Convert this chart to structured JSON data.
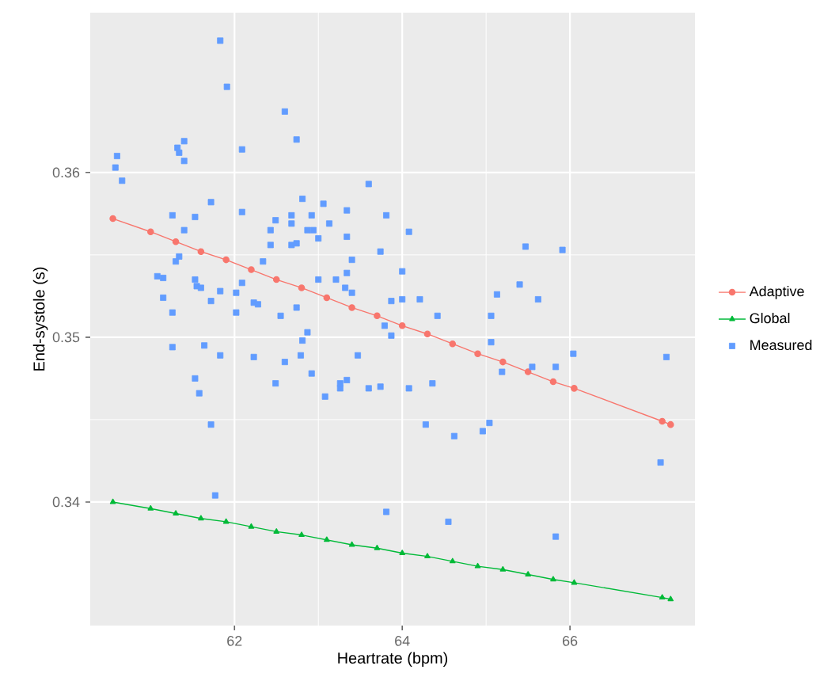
{
  "chart_data": {
    "type": "scatter",
    "xlabel": "Heartrate (bpm)",
    "ylabel": "End-systole (s)",
    "xlim": [
      60.28,
      67.49
    ],
    "ylim": [
      0.3325,
      0.3697
    ],
    "xticks": [
      62,
      64,
      66
    ],
    "yticks": [
      0.34,
      0.35,
      0.36
    ],
    "grid": true,
    "legend": "right",
    "series": [
      {
        "name": "Adaptive",
        "type": "line",
        "marker": "circle",
        "color": "#f8766d",
        "x": [
          60.55,
          61.0,
          61.3,
          61.6,
          61.9,
          62.2,
          62.5,
          62.8,
          63.1,
          63.4,
          63.7,
          64.0,
          64.3,
          64.6,
          64.9,
          65.2,
          65.5,
          65.8,
          66.05,
          67.1,
          67.2
        ],
        "values": [
          0.3572,
          0.3564,
          0.3558,
          0.3552,
          0.3547,
          0.3541,
          0.3535,
          0.353,
          0.3524,
          0.3518,
          0.3513,
          0.3507,
          0.3502,
          0.3496,
          0.349,
          0.3485,
          0.3479,
          0.3473,
          0.3469,
          0.3449,
          0.3447
        ]
      },
      {
        "name": "Global",
        "type": "line",
        "marker": "triangle",
        "color": "#00ba38",
        "x": [
          60.55,
          61.0,
          61.3,
          61.6,
          61.9,
          62.2,
          62.5,
          62.8,
          63.1,
          63.4,
          63.7,
          64.0,
          64.3,
          64.6,
          64.9,
          65.2,
          65.5,
          65.8,
          66.05,
          67.1,
          67.2
        ],
        "values": [
          0.34,
          0.3396,
          0.3393,
          0.339,
          0.3388,
          0.3385,
          0.3382,
          0.338,
          0.3377,
          0.3374,
          0.3372,
          0.3369,
          0.3367,
          0.3364,
          0.3361,
          0.3359,
          0.3356,
          0.3353,
          0.3351,
          0.3342,
          0.3341
        ]
      },
      {
        "name": "Measured",
        "marker": "square",
        "color": "#619cff",
        "x": [
          61.83,
          61.91,
          60.6,
          60.58,
          60.66,
          61.4,
          61.32,
          61.34,
          61.4,
          62.09,
          61.72,
          61.26,
          61.53,
          61.4,
          62.09,
          62.49,
          62.43,
          61.34,
          61.3,
          62.43,
          62.34,
          61.08,
          61.15,
          61.53,
          61.55,
          61.6,
          61.15,
          61.83,
          62.02,
          61.72,
          62.09,
          62.23,
          62.28,
          61.26,
          62.02,
          62.6,
          62.74,
          63.6,
          62.81,
          63.06,
          62.68,
          62.92,
          63.34,
          63.81,
          62.68,
          63.13,
          62.87,
          62.94,
          64.08,
          65.47,
          63.0,
          63.34,
          62.68,
          62.74,
          63.74,
          63.4,
          64.0,
          63.34,
          63.0,
          63.21,
          63.32,
          63.4,
          65.4,
          65.13,
          65.62,
          63.87,
          64.0,
          64.21,
          62.74,
          62.55,
          64.42,
          65.06,
          65.91,
          62.87,
          62.81,
          62.6,
          62.79,
          62.92,
          62.49,
          63.08,
          63.26,
          63.26,
          63.34,
          63.47,
          63.6,
          63.74,
          63.79,
          63.87,
          64.08,
          64.36,
          65.06,
          65.19,
          65.55,
          64.28,
          64.62,
          64.96,
          65.04,
          63.81,
          64.55,
          66.04,
          65.83,
          67.15,
          67.08,
          65.83,
          61.26,
          61.64,
          61.83,
          62.23,
          61.53,
          61.58,
          61.72,
          61.77
        ],
        "values": [
          0.368,
          0.3652,
          0.361,
          0.3603,
          0.3595,
          0.3619,
          0.3615,
          0.3612,
          0.3607,
          0.3614,
          0.3582,
          0.3574,
          0.3573,
          0.3565,
          0.3576,
          0.3571,
          0.3565,
          0.3549,
          0.3546,
          0.3556,
          0.3546,
          0.3537,
          0.3536,
          0.3535,
          0.3531,
          0.353,
          0.3524,
          0.3528,
          0.3527,
          0.3522,
          0.3533,
          0.3521,
          0.352,
          0.3515,
          0.3515,
          0.3637,
          0.362,
          0.3593,
          0.3584,
          0.3581,
          0.3574,
          0.3574,
          0.3577,
          0.3574,
          0.3569,
          0.3569,
          0.3565,
          0.3565,
          0.3564,
          0.3555,
          0.356,
          0.3561,
          0.3556,
          0.3557,
          0.3552,
          0.3547,
          0.354,
          0.3539,
          0.3535,
          0.3535,
          0.353,
          0.3527,
          0.3532,
          0.3526,
          0.3523,
          0.3522,
          0.3523,
          0.3523,
          0.3518,
          0.3513,
          0.3513,
          0.3513,
          0.3553,
          0.3503,
          0.3498,
          0.3485,
          0.3489,
          0.3478,
          0.3472,
          0.3464,
          0.3469,
          0.3472,
          0.3474,
          0.3489,
          0.3469,
          0.347,
          0.3507,
          0.3501,
          0.3469,
          0.3472,
          0.3497,
          0.3479,
          0.3482,
          0.3447,
          0.344,
          0.3443,
          0.3448,
          0.3394,
          0.3388,
          0.349,
          0.3482,
          0.3488,
          0.3424,
          0.3379,
          0.3494,
          0.3495,
          0.3489,
          0.3488,
          0.3475,
          0.3466,
          0.3447,
          0.3404
        ]
      }
    ]
  }
}
